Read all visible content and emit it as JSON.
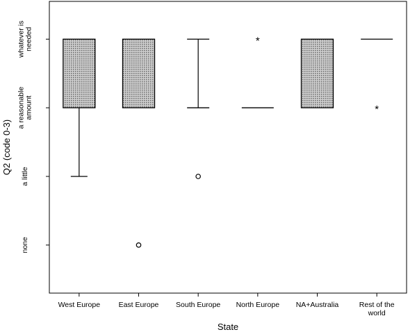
{
  "chart_data": {
    "type": "boxplot",
    "xlabel": "State",
    "ylabel": "Q2 (code 0-3)",
    "y_ticks": [
      {
        "value": 0,
        "lines": [
          "none"
        ]
      },
      {
        "value": 1,
        "lines": [
          "a little"
        ]
      },
      {
        "value": 2,
        "lines": [
          "a reasonable",
          "amount"
        ]
      },
      {
        "value": 3,
        "lines": [
          "whatever is",
          "needed"
        ]
      }
    ],
    "ylim": [
      -0.7,
      3.55
    ],
    "box_fill": "#c8c8c8",
    "categories": [
      {
        "name": "West Europe",
        "lines": [
          "West Europe"
        ],
        "q1": 2,
        "median": 3,
        "q3": 3,
        "whisker_low": 1,
        "whisker_high": 3,
        "outliers": [],
        "extremes": [],
        "box": true
      },
      {
        "name": "East Europe",
        "lines": [
          "East Europe"
        ],
        "q1": 2,
        "median": 3,
        "q3": 3,
        "whisker_low": 2,
        "whisker_high": 3,
        "outliers": [
          0
        ],
        "extremes": [],
        "box": true
      },
      {
        "name": "South Europe",
        "lines": [
          "South Europe"
        ],
        "q1": 2,
        "median": 3,
        "q3": 3,
        "whisker_low": 2,
        "whisker_high": 3,
        "outliers": [
          1
        ],
        "extremes": [],
        "box": false
      },
      {
        "name": "North Europe",
        "lines": [
          "North Europe"
        ],
        "q1": 2,
        "median": 2,
        "q3": 2,
        "whisker_low": 2,
        "whisker_high": 2,
        "outliers": [],
        "extremes": [
          3
        ],
        "box": false
      },
      {
        "name": "NA+Australia",
        "lines": [
          "NA+Australia"
        ],
        "q1": 2,
        "median": 3,
        "q3": 3,
        "whisker_low": 2,
        "whisker_high": 3,
        "outliers": [],
        "extremes": [],
        "box": true
      },
      {
        "name": "Rest of the world",
        "lines": [
          "Rest of the",
          "world"
        ],
        "q1": 3,
        "median": 3,
        "q3": 3,
        "whisker_low": 3,
        "whisker_high": 3,
        "outliers": [],
        "extremes": [
          2
        ],
        "box": false
      }
    ]
  }
}
